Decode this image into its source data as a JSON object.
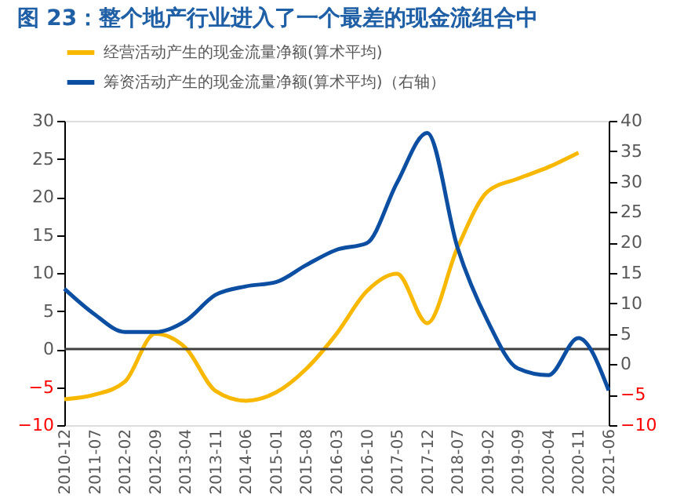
{
  "chart_data": {
    "type": "line",
    "title": "图 23：整个地产行业进入了一个最差的现金流组合中",
    "categories": [
      "2010-12",
      "2011-07",
      "2012-02",
      "2012-09",
      "2013-04",
      "2013-11",
      "2014-06",
      "2015-01",
      "2015-08",
      "2016-03",
      "2016-10",
      "2017-05",
      "2017-12",
      "2018-07",
      "2019-02",
      "2019-09",
      "2020-04",
      "2020-11",
      "2021-06"
    ],
    "series": [
      {
        "name": "经营活动产生的现金流量净额(算术平均)",
        "color": "#f8b800",
        "values": [
          -6.6,
          -6,
          -4.3,
          2,
          0.2,
          -5.5,
          -6.8,
          -5.7,
          -2.6,
          2,
          7.6,
          9.9,
          3.4,
          13.3,
          20.7,
          22.4,
          23.9,
          25.8,
          null
        ]
      },
      {
        "name": "筹资活动产生的现金流量净额(算术平均)（右轴）",
        "color": "#0b4ea2",
        "axis": "y2",
        "values": [
          12.4,
          8.2,
          5.3,
          5.3,
          7.1,
          11.4,
          12.8,
          13.5,
          16.3,
          18.8,
          19.9,
          29.8,
          38,
          19.2,
          7.1,
          -0.7,
          -1.8,
          4.3,
          -4.3
        ]
      }
    ],
    "ylim": [
      -10,
      30
    ],
    "yticks": [
      -10,
      -5,
      0,
      5,
      10,
      15,
      20,
      25,
      30
    ],
    "y2lim": [
      -10,
      40
    ],
    "y2ticks": [
      -10,
      -5,
      0,
      5,
      10,
      15,
      20,
      25,
      30,
      35,
      40
    ],
    "ref_lines": [
      {
        "axis": "y",
        "value": 0,
        "color": "#404040"
      }
    ],
    "grid": false,
    "legend": "top",
    "line_style": "solid",
    "marker": "none"
  }
}
